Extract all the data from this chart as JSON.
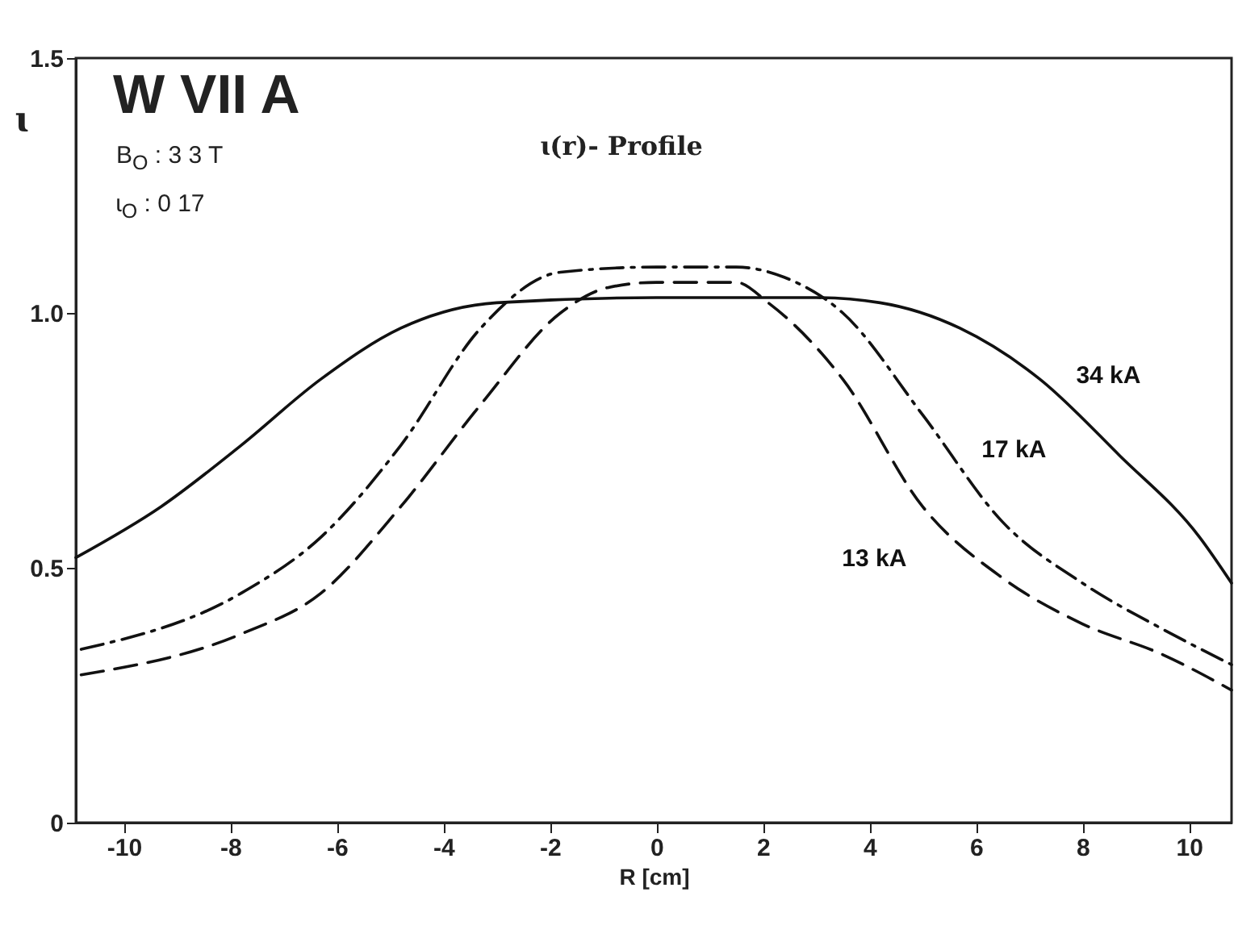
{
  "chart_data": {
    "type": "line",
    "title": "ɩ(r)- Profile",
    "xlabel": "R  [cm]",
    "ylabel": "ɩ",
    "annotations": [
      "W VII A",
      "B$_{O}$ : 3 3 T",
      "ɩ$_{O}$ : 0 17"
    ],
    "xlim": [
      -10.9,
      10.8
    ],
    "ylim": [
      0,
      1.5
    ],
    "xticks": [
      -10,
      -8,
      -6,
      -4,
      -2,
      0,
      2,
      4,
      6,
      8,
      10
    ],
    "yticks": [
      0,
      0.5,
      {
        "value": 1,
        "label": "1.0"
      },
      1.5
    ],
    "grid": false,
    "marker": "none",
    "series": [
      {
        "name": "34 kA",
        "color": "#111111",
        "line_style": "solid",
        "x": [
          -10.9,
          -9.3,
          -7.8,
          -6.3,
          -4.8,
          -3,
          0,
          3,
          4.2,
          5.7,
          7.2,
          8.7,
          10.2,
          10.8
        ],
        "values": [
          0.52,
          0.62,
          0.74,
          0.87,
          0.97,
          1.02,
          1.03,
          1.03,
          1.02,
          0.97,
          0.87,
          0.72,
          0.56,
          0.47
        ]
      },
      {
        "name": "17 kA",
        "color": "#111111",
        "line_style": "dashdot",
        "x": [
          -10.8,
          -7.8,
          -6.3,
          -4.8,
          -3.3,
          -1.8,
          0,
          1.5,
          2.4,
          3.5,
          5,
          6.5,
          8,
          9.5,
          10.8
        ],
        "values": [
          0.34,
          0.45,
          0.56,
          0.74,
          0.97,
          1.08,
          1.09,
          1.09,
          1.07,
          1.0,
          0.8,
          0.59,
          0.47,
          0.38,
          0.31
        ]
      },
      {
        "name": "13 kA",
        "color": "#111111",
        "line_style": "dashed",
        "x": [
          -10.8,
          -7.8,
          -6.3,
          -4.8,
          -3.3,
          -1.8,
          -0.9,
          0,
          1.5,
          2.1,
          3.5,
          5,
          6.5,
          8,
          9.5,
          10.8
        ],
        "values": [
          0.29,
          0.37,
          0.45,
          0.62,
          0.82,
          1.0,
          1.05,
          1.06,
          1.06,
          1.02,
          0.87,
          0.62,
          0.48,
          0.39,
          0.33,
          0.26
        ]
      }
    ]
  }
}
